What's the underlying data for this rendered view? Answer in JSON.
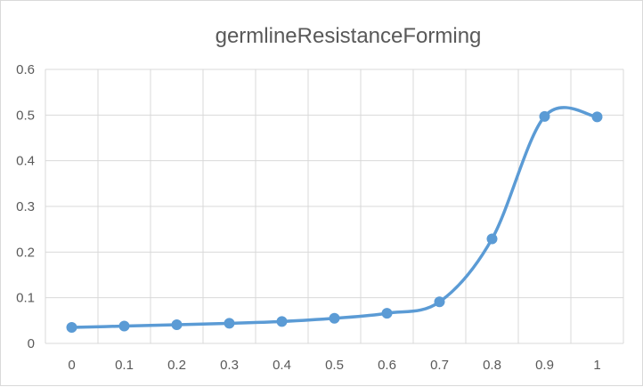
{
  "chart_data": {
    "type": "line",
    "title": "germlineResistanceForming",
    "xlabel": "",
    "ylabel": "",
    "x": [
      0,
      0.1,
      0.2,
      0.3,
      0.4,
      0.5,
      0.6,
      0.7,
      0.8,
      0.9,
      1
    ],
    "x_tick_labels": [
      "0",
      "0.1",
      "0.2",
      "0.3",
      "0.4",
      "0.5",
      "0.6",
      "0.7",
      "0.8",
      "0.9",
      "1"
    ],
    "y_tick_labels": [
      "0",
      "0.1",
      "0.2",
      "0.3",
      "0.4",
      "0.5",
      "0.6"
    ],
    "ylim": [
      0,
      0.6
    ],
    "grid": true,
    "smooth": true,
    "legend": "none",
    "series": [
      {
        "color": "#5b9bd5",
        "values": [
          0.035,
          0.038,
          0.041,
          0.044,
          0.048,
          0.055,
          0.066,
          0.091,
          0.229,
          0.497,
          0.496
        ]
      }
    ]
  }
}
